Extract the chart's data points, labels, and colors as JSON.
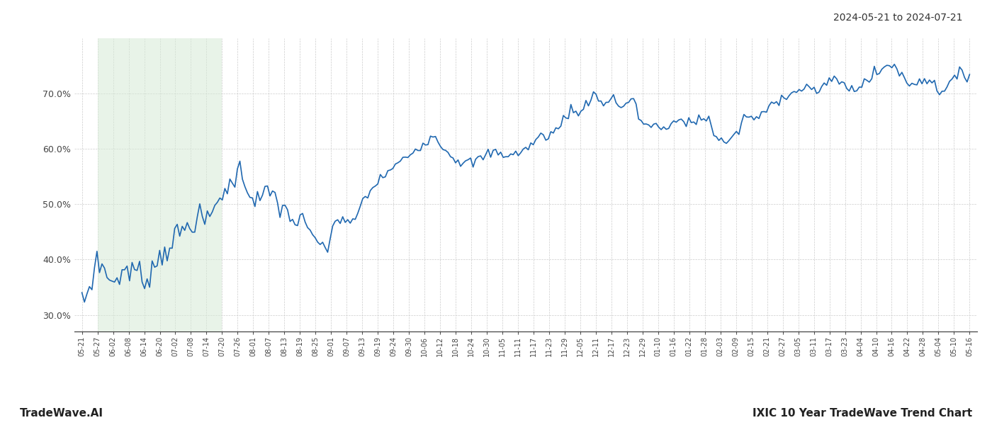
{
  "title_right": "2024-05-21 to 2024-07-21",
  "footer_left": "TradeWave.AI",
  "footer_right": "IXIC 10 Year TradeWave Trend Chart",
  "line_color": "#2068b0",
  "line_width": 1.2,
  "bg_color": "#ffffff",
  "grid_color": "#cccccc",
  "grid_style": "--",
  "shade_color": "#d6ead6",
  "shade_alpha": 0.55,
  "ylim_low": 27.0,
  "ylim_high": 80.0,
  "y_ticks": [
    30.0,
    40.0,
    50.0,
    60.0,
    70.0
  ],
  "x_labels": [
    "05-21",
    "05-27",
    "06-02",
    "06-08",
    "06-14",
    "06-20",
    "07-02",
    "07-08",
    "07-14",
    "07-20",
    "07-26",
    "08-01",
    "08-07",
    "08-13",
    "08-19",
    "08-25",
    "09-01",
    "09-07",
    "09-13",
    "09-19",
    "09-24",
    "09-30",
    "10-06",
    "10-12",
    "10-18",
    "10-24",
    "10-30",
    "11-05",
    "11-11",
    "11-17",
    "11-23",
    "11-29",
    "12-05",
    "12-11",
    "12-17",
    "12-23",
    "12-29",
    "01-10",
    "01-16",
    "01-22",
    "01-28",
    "02-03",
    "02-09",
    "02-15",
    "02-21",
    "02-27",
    "03-05",
    "03-11",
    "03-17",
    "03-23",
    "04-04",
    "04-10",
    "04-16",
    "04-22",
    "04-28",
    "05-04",
    "05-10",
    "05-16"
  ],
  "shade_start_label": "05-27",
  "shade_end_label": "07-20",
  "waypoints": [
    [
      0,
      32.0
    ],
    [
      4,
      35.5
    ],
    [
      6,
      41.5
    ],
    [
      8,
      38.0
    ],
    [
      10,
      37.5
    ],
    [
      12,
      35.5
    ],
    [
      14,
      37.0
    ],
    [
      16,
      37.5
    ],
    [
      18,
      38.5
    ],
    [
      20,
      37.5
    ],
    [
      22,
      38.5
    ],
    [
      24,
      36.0
    ],
    [
      26,
      37.0
    ],
    [
      28,
      38.5
    ],
    [
      32,
      41.0
    ],
    [
      36,
      43.5
    ],
    [
      40,
      45.0
    ],
    [
      44,
      47.0
    ],
    [
      48,
      47.5
    ],
    [
      50,
      46.5
    ],
    [
      54,
      50.5
    ],
    [
      56,
      52.5
    ],
    [
      58,
      52.0
    ],
    [
      62,
      56.5
    ],
    [
      66,
      53.5
    ],
    [
      68,
      51.5
    ],
    [
      70,
      50.5
    ],
    [
      72,
      51.5
    ],
    [
      74,
      51.5
    ],
    [
      76,
      52.0
    ],
    [
      80,
      49.0
    ],
    [
      82,
      48.5
    ],
    [
      86,
      46.5
    ],
    [
      88,
      46.5
    ],
    [
      92,
      44.5
    ],
    [
      94,
      43.5
    ],
    [
      96,
      42.0
    ],
    [
      98,
      41.5
    ],
    [
      100,
      46.5
    ],
    [
      104,
      47.5
    ],
    [
      106,
      46.5
    ],
    [
      108,
      46.5
    ],
    [
      112,
      50.5
    ],
    [
      116,
      53.0
    ],
    [
      120,
      55.0
    ],
    [
      124,
      56.5
    ],
    [
      128,
      58.0
    ],
    [
      132,
      59.5
    ],
    [
      136,
      61.0
    ],
    [
      140,
      62.5
    ],
    [
      144,
      60.5
    ],
    [
      148,
      58.5
    ],
    [
      152,
      57.5
    ],
    [
      156,
      57.5
    ],
    [
      160,
      58.5
    ],
    [
      164,
      59.5
    ],
    [
      168,
      59.0
    ],
    [
      172,
      59.0
    ],
    [
      176,
      59.5
    ],
    [
      178,
      60.5
    ],
    [
      180,
      61.0
    ],
    [
      182,
      62.0
    ],
    [
      184,
      62.5
    ],
    [
      186,
      62.5
    ],
    [
      188,
      63.0
    ],
    [
      190,
      63.5
    ],
    [
      192,
      65.5
    ],
    [
      196,
      67.5
    ],
    [
      198,
      65.5
    ],
    [
      200,
      68.0
    ],
    [
      202,
      68.5
    ],
    [
      204,
      70.5
    ],
    [
      206,
      68.5
    ],
    [
      208,
      68.0
    ],
    [
      210,
      69.0
    ],
    [
      212,
      69.5
    ],
    [
      214,
      67.5
    ],
    [
      216,
      68.0
    ],
    [
      218,
      68.5
    ],
    [
      220,
      69.0
    ],
    [
      222,
      65.5
    ],
    [
      224,
      65.0
    ],
    [
      226,
      64.0
    ],
    [
      228,
      64.5
    ],
    [
      230,
      64.0
    ],
    [
      232,
      63.5
    ],
    [
      234,
      63.5
    ],
    [
      236,
      64.5
    ],
    [
      238,
      65.5
    ],
    [
      240,
      65.0
    ],
    [
      242,
      65.0
    ],
    [
      244,
      64.5
    ],
    [
      246,
      65.5
    ],
    [
      248,
      65.5
    ],
    [
      250,
      66.0
    ],
    [
      252,
      62.5
    ],
    [
      254,
      61.5
    ],
    [
      256,
      61.5
    ],
    [
      258,
      61.5
    ],
    [
      260,
      62.0
    ],
    [
      262,
      63.5
    ],
    [
      264,
      65.5
    ],
    [
      266,
      66.0
    ],
    [
      268,
      65.5
    ],
    [
      270,
      65.5
    ],
    [
      272,
      66.5
    ],
    [
      274,
      67.5
    ],
    [
      276,
      68.5
    ],
    [
      278,
      69.0
    ],
    [
      280,
      69.5
    ],
    [
      282,
      70.5
    ],
    [
      284,
      70.0
    ],
    [
      286,
      70.5
    ],
    [
      288,
      71.5
    ],
    [
      290,
      71.0
    ],
    [
      292,
      70.5
    ],
    [
      294,
      70.5
    ],
    [
      296,
      71.0
    ],
    [
      298,
      72.0
    ],
    [
      300,
      73.0
    ],
    [
      302,
      72.5
    ],
    [
      304,
      71.5
    ],
    [
      306,
      70.5
    ],
    [
      308,
      71.0
    ],
    [
      310,
      71.5
    ],
    [
      312,
      72.0
    ],
    [
      314,
      72.5
    ],
    [
      316,
      73.5
    ],
    [
      318,
      74.0
    ],
    [
      320,
      74.5
    ],
    [
      322,
      75.5
    ],
    [
      324,
      75.0
    ],
    [
      326,
      74.0
    ],
    [
      328,
      72.5
    ],
    [
      330,
      71.5
    ],
    [
      332,
      72.0
    ],
    [
      334,
      72.5
    ],
    [
      336,
      72.5
    ],
    [
      338,
      72.5
    ],
    [
      340,
      71.5
    ],
    [
      342,
      70.5
    ],
    [
      344,
      71.0
    ],
    [
      346,
      72.0
    ],
    [
      348,
      72.5
    ],
    [
      350,
      73.5
    ],
    [
      352,
      73.0
    ],
    [
      354,
      73.5
    ]
  ]
}
